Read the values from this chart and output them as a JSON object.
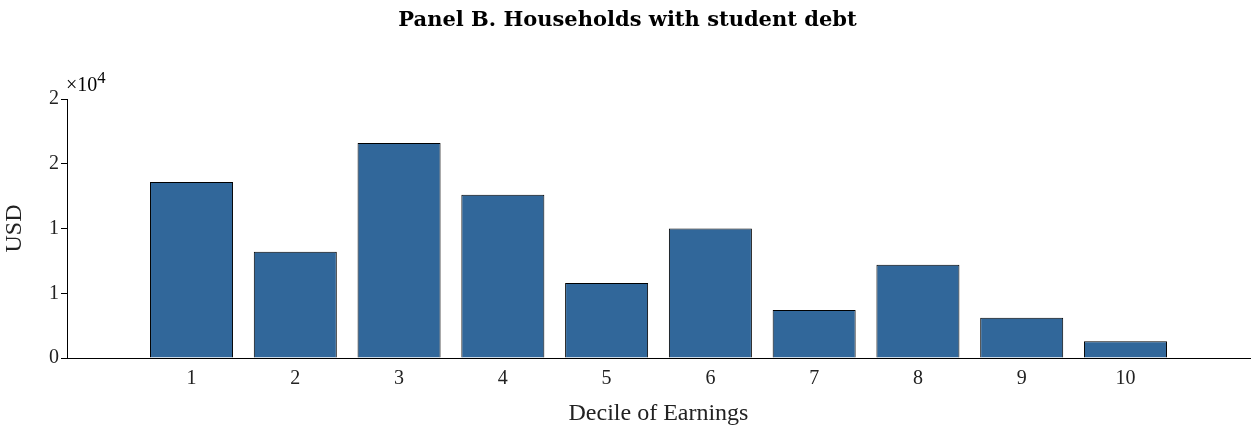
{
  "chart_data": {
    "type": "bar",
    "title": "Panel B. Households with student debt",
    "xlabel": "Decile of Earnings",
    "ylabel": "USD",
    "x": [
      1,
      2,
      3,
      4,
      5,
      6,
      7,
      8,
      9,
      10
    ],
    "values": [
      1.36,
      0.82,
      1.66,
      1.26,
      0.58,
      1.0,
      0.37,
      0.72,
      0.31,
      0.13
    ],
    "color": "#31679a",
    "xlim": [
      -0.2,
      11.2
    ],
    "xticks": [
      1,
      2,
      3,
      4,
      5,
      6,
      7,
      8,
      9,
      10
    ],
    "ylim": [
      0,
      2
    ],
    "yticks": [
      0,
      {
        "value": 0.5,
        "label": "1"
      },
      1,
      {
        "value": 1.5,
        "label": "2"
      },
      2
    ],
    "annotations": [
      "×10$^{4}$"
    ],
    "grid": false,
    "legend": false
  }
}
